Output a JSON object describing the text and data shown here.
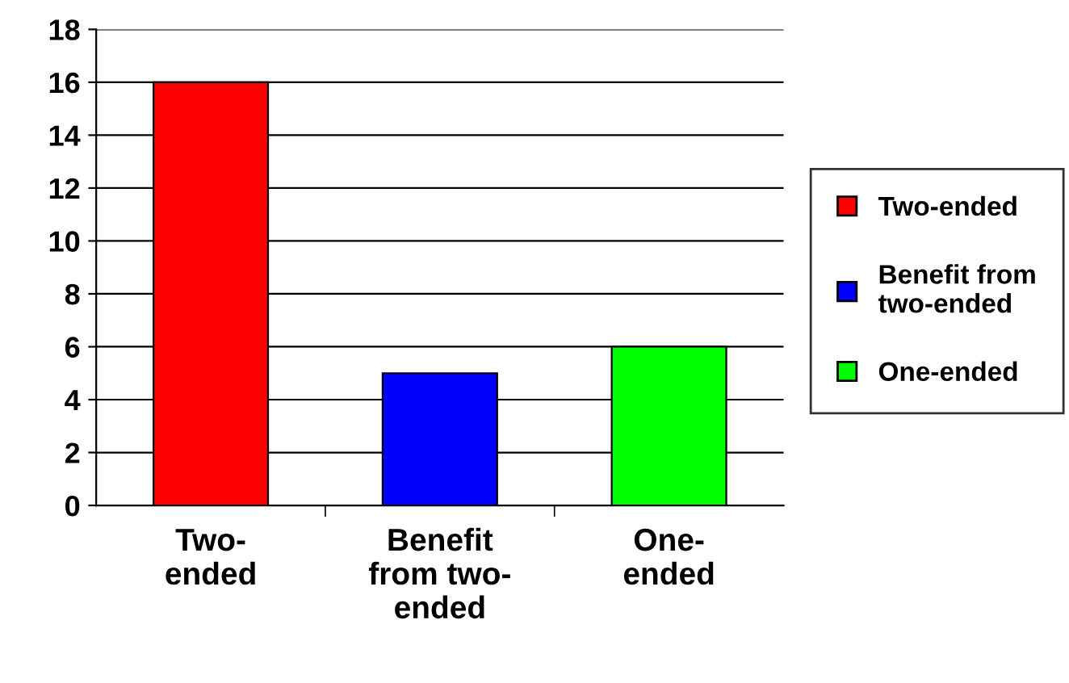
{
  "chart_data": {
    "type": "bar",
    "categories": [
      "Two-\nended",
      "Benefit\nfrom two-\nended",
      "One-\nended"
    ],
    "series": [
      {
        "name": "Two-ended",
        "color": "#ff0000",
        "values": [
          16,
          null,
          null
        ]
      },
      {
        "name": "Benefit from\ntwo-ended",
        "color": "#0000ff",
        "values": [
          null,
          5,
          null
        ]
      },
      {
        "name": "One-ended",
        "color": "#00ff00",
        "values": [
          null,
          null,
          6
        ]
      }
    ],
    "ylim": [
      0,
      18
    ],
    "yticks": [
      0,
      2,
      4,
      6,
      8,
      10,
      12,
      14,
      16,
      18
    ],
    "grid": "y",
    "legend": "right"
  }
}
